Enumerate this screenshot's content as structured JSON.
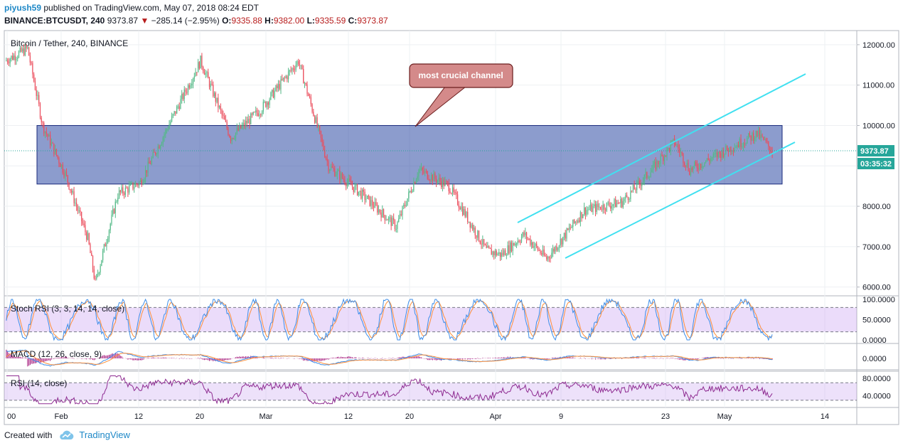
{
  "header": {
    "author": "piyush59",
    "published_text": "published on TradingView.com, May 07, 2018 08:24 EDT",
    "symbol": "BINANCE:BTCUSDT, 240",
    "last": "9373.87",
    "change_arrow": "▼",
    "change": "−285.14 (−2.95%)",
    "open_label": "O:",
    "open": "9335.88",
    "high_label": "H:",
    "high": "9382.00",
    "low_label": "L:",
    "low": "9335.59",
    "close_label": "C:",
    "close": "9373.87"
  },
  "footer": {
    "created_with": "Created with",
    "brand": "TradingView"
  },
  "chart_data": {
    "type": "candlestick",
    "title": "Bitcoin / Tether, 240, BINANCE",
    "price_axis": {
      "ticks": [
        "12000.00",
        "11000.00",
        "10000.00",
        "9000.00",
        "8000.00",
        "7000.00",
        "6000.00"
      ],
      "ylim": [
        5800,
        12350
      ]
    },
    "last_price_label": "9373.87",
    "countdown_label": "03:35:32",
    "time_axis_labels": [
      "00",
      "Feb",
      "12",
      "20",
      "Mar",
      "12",
      "20",
      "Apr",
      "9",
      "23",
      "May",
      "14"
    ],
    "approx_price_path": [
      {
        "t": "Jan 25",
        "p": 11600
      },
      {
        "t": "Jan 28",
        "p": 11900
      },
      {
        "t": "Jan 30",
        "p": 10000
      },
      {
        "t": "Feb 2",
        "p": 8800
      },
      {
        "t": "Feb 5",
        "p": 7200
      },
      {
        "t": "Feb 6",
        "p": 6100
      },
      {
        "t": "Feb 9",
        "p": 8300
      },
      {
        "t": "Feb 12",
        "p": 8600
      },
      {
        "t": "Feb 16",
        "p": 10100
      },
      {
        "t": "Feb 20",
        "p": 11600
      },
      {
        "t": "Feb 24",
        "p": 9700
      },
      {
        "t": "Feb 28",
        "p": 10400
      },
      {
        "t": "Mar 5",
        "p": 11600
      },
      {
        "t": "Mar 9",
        "p": 9000
      },
      {
        "t": "Mar 14",
        "p": 8200
      },
      {
        "t": "Mar 18",
        "p": 7500
      },
      {
        "t": "Mar 21",
        "p": 8900
      },
      {
        "t": "Mar 25",
        "p": 8500
      },
      {
        "t": "Mar 30",
        "p": 6900
      },
      {
        "t": "Apr 1",
        "p": 6800
      },
      {
        "t": "Apr 4",
        "p": 7300
      },
      {
        "t": "Apr 7",
        "p": 6700
      },
      {
        "t": "Apr 12",
        "p": 7900
      },
      {
        "t": "Apr 17",
        "p": 8100
      },
      {
        "t": "Apr 21",
        "p": 8900
      },
      {
        "t": "Apr 24",
        "p": 9600
      },
      {
        "t": "Apr 26",
        "p": 8900
      },
      {
        "t": "Apr 30",
        "p": 9300
      },
      {
        "t": "May 5",
        "p": 9800
      },
      {
        "t": "May 7",
        "p": 9374
      }
    ],
    "annotations": {
      "callout": "most crucial channel",
      "zone": {
        "from_price": 8550,
        "to_price": 10000
      },
      "channel_color": "#40e0f0",
      "zone_color": "#1a3a9c"
    },
    "indicators": {
      "stoch_rsi": {
        "title": "Stoch RSI (3, 3, 14, 14, close)",
        "ticks": [
          "100.0000",
          "50.0000",
          "0.0000"
        ],
        "levels": [
          80,
          20
        ]
      },
      "macd": {
        "title": "MACD (12, 26, close, 9)",
        "ticks": [
          "0.0000"
        ]
      },
      "rsi": {
        "title": "RSI (14, close)",
        "ticks": [
          "80.0000",
          "40.0000"
        ],
        "levels": [
          70,
          30
        ]
      }
    },
    "colors": {
      "up": "#53b987",
      "down": "#eb4d5c",
      "k_line": "#3e8ee8",
      "d_line": "#ff8f3a",
      "rsi_line": "#8e2b91",
      "band": "#c59cf0"
    }
  }
}
